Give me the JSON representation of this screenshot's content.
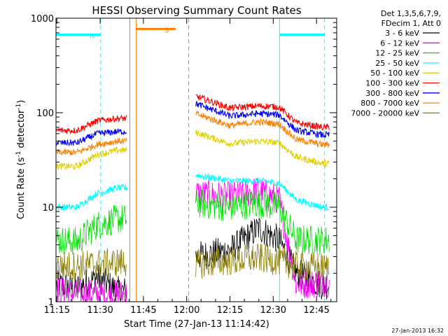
{
  "chart_data": {
    "type": "line",
    "title": "HESSI Observing Summary Count Rates",
    "xlabel": "Start Time (27-Jan-13 11:14:42)",
    "ylabel_main": "Count Rate (s",
    "ylabel_sup1": "-1",
    "ylabel_mid": " detector",
    "ylabel_sup2": "-1",
    "ylabel_end": ")",
    "yscale": "log",
    "ylim": [
      1,
      1000
    ],
    "xlim_min": [
      674.7,
      772
    ],
    "x_ticks": [
      {
        "min": 675,
        "label": "11:15"
      },
      {
        "min": 690,
        "label": "11:30"
      },
      {
        "min": 705,
        "label": "11:45"
      },
      {
        "min": 720,
        "label": "12:00"
      },
      {
        "min": 735,
        "label": "12:15"
      },
      {
        "min": 750,
        "label": "12:30"
      },
      {
        "min": 765,
        "label": "12:45"
      }
    ],
    "y_ticks": [
      {
        "value": 1,
        "label": "1"
      },
      {
        "value": 10,
        "label": "10"
      },
      {
        "value": 100,
        "label": "100"
      },
      {
        "value": 1000,
        "label": "1000"
      }
    ],
    "legend_header": [
      "Det 1,3,5,6,7,9,",
      "FDecim 1, Att 0"
    ],
    "legend_position": "right",
    "series": [
      {
        "name": "3 - 6 keV",
        "color": "#000000",
        "values": [
          {
            "t": 675,
            "v": 1.5
          },
          {
            "t": 682,
            "v": 1.4
          },
          {
            "t": 689,
            "v": 1.8
          },
          {
            "t": 696,
            "v": 1.3
          },
          {
            "t": 723,
            "v": 3.0
          },
          {
            "t": 735,
            "v": 3.5
          },
          {
            "t": 745,
            "v": 6.0
          },
          {
            "t": 752,
            "v": 4.5
          },
          {
            "t": 758,
            "v": 2.0
          },
          {
            "t": 767,
            "v": 1.5
          }
        ]
      },
      {
        "name": "6 - 12 keV",
        "color": "#ff00ff",
        "values": [
          {
            "t": 675,
            "v": 1.3
          },
          {
            "t": 682,
            "v": 1.2
          },
          {
            "t": 689,
            "v": 1.2
          },
          {
            "t": 696,
            "v": 1.2
          },
          {
            "t": 723,
            "v": 14
          },
          {
            "t": 735,
            "v": 13
          },
          {
            "t": 745,
            "v": 15
          },
          {
            "t": 752,
            "v": 12
          },
          {
            "t": 758,
            "v": 1.5
          },
          {
            "t": 767,
            "v": 1.6
          }
        ]
      },
      {
        "name": "12 - 25 keV",
        "color": "#00e000",
        "values": [
          {
            "t": 675,
            "v": 4.5
          },
          {
            "t": 682,
            "v": 4.3
          },
          {
            "t": 689,
            "v": 6.5
          },
          {
            "t": 696,
            "v": 7.5
          },
          {
            "t": 723,
            "v": 11
          },
          {
            "t": 735,
            "v": 10
          },
          {
            "t": 745,
            "v": 11
          },
          {
            "t": 752,
            "v": 10
          },
          {
            "t": 758,
            "v": 4.5
          },
          {
            "t": 767,
            "v": 4.5
          }
        ]
      },
      {
        "name": "25 - 50 keV",
        "color": "#00ffff",
        "values": [
          {
            "t": 675,
            "v": 10
          },
          {
            "t": 682,
            "v": 10
          },
          {
            "t": 689,
            "v": 14
          },
          {
            "t": 696,
            "v": 16
          },
          {
            "t": 723,
            "v": 22
          },
          {
            "t": 735,
            "v": 19
          },
          {
            "t": 745,
            "v": 19
          },
          {
            "t": 752,
            "v": 18
          },
          {
            "t": 758,
            "v": 12
          },
          {
            "t": 767,
            "v": 10
          }
        ]
      },
      {
        "name": "50 - 100 keV",
        "color": "#e0d000",
        "values": [
          {
            "t": 675,
            "v": 27
          },
          {
            "t": 682,
            "v": 27
          },
          {
            "t": 689,
            "v": 36
          },
          {
            "t": 696,
            "v": 40
          },
          {
            "t": 723,
            "v": 62
          },
          {
            "t": 735,
            "v": 47
          },
          {
            "t": 745,
            "v": 50
          },
          {
            "t": 752,
            "v": 48
          },
          {
            "t": 758,
            "v": 34
          },
          {
            "t": 767,
            "v": 29
          }
        ]
      },
      {
        "name": "100 - 300 keV",
        "color": "#ff0000",
        "values": [
          {
            "t": 675,
            "v": 65
          },
          {
            "t": 682,
            "v": 65
          },
          {
            "t": 689,
            "v": 82
          },
          {
            "t": 696,
            "v": 87
          },
          {
            "t": 723,
            "v": 150
          },
          {
            "t": 735,
            "v": 112
          },
          {
            "t": 745,
            "v": 118
          },
          {
            "t": 752,
            "v": 115
          },
          {
            "t": 758,
            "v": 78
          },
          {
            "t": 767,
            "v": 70
          }
        ]
      },
      {
        "name": "300 - 800 keV",
        "color": "#0000ff",
        "values": [
          {
            "t": 675,
            "v": 48
          },
          {
            "t": 682,
            "v": 48
          },
          {
            "t": 689,
            "v": 60
          },
          {
            "t": 696,
            "v": 63
          },
          {
            "t": 723,
            "v": 125
          },
          {
            "t": 735,
            "v": 92
          },
          {
            "t": 745,
            "v": 98
          },
          {
            "t": 752,
            "v": 95
          },
          {
            "t": 758,
            "v": 65
          },
          {
            "t": 767,
            "v": 58
          }
        ]
      },
      {
        "name": "800 - 7000 keV",
        "color": "#ff8000",
        "values": [
          {
            "t": 675,
            "v": 38
          },
          {
            "t": 682,
            "v": 38
          },
          {
            "t": 689,
            "v": 46
          },
          {
            "t": 696,
            "v": 50
          },
          {
            "t": 723,
            "v": 98
          },
          {
            "t": 735,
            "v": 73
          },
          {
            "t": 745,
            "v": 80
          },
          {
            "t": 752,
            "v": 76
          },
          {
            "t": 758,
            "v": 52
          },
          {
            "t": 767,
            "v": 46
          }
        ]
      },
      {
        "name": "7000 - 20000 keV",
        "color": "#8b7d00",
        "values": [
          {
            "t": 675,
            "v": 2.4
          },
          {
            "t": 682,
            "v": 2.4
          },
          {
            "t": 689,
            "v": 2.5
          },
          {
            "t": 696,
            "v": 2.6
          },
          {
            "t": 723,
            "v": 2.5
          },
          {
            "t": 735,
            "v": 2.7
          },
          {
            "t": 745,
            "v": 2.9
          },
          {
            "t": 752,
            "v": 2.7
          },
          {
            "t": 758,
            "v": 2.4
          },
          {
            "t": 767,
            "v": 2.3
          }
        ]
      }
    ],
    "bars": [
      {
        "label": "N",
        "color": "#00ffff",
        "from": 674.7,
        "to": 690.2,
        "value": 670
      },
      {
        "label": "S",
        "color": "#ff8000",
        "from": 702.5,
        "to": 716.2,
        "value": 770
      },
      {
        "label": "",
        "color": "#00ffff",
        "from": 752.2,
        "to": 767.8,
        "value": 670
      }
    ],
    "vlines": [
      {
        "t": 690.2,
        "color": "#00ffff",
        "style": "dashed"
      },
      {
        "t": 700.3,
        "color": "#ff8000",
        "style": "solid"
      },
      {
        "t": 702.5,
        "color": "#ff8000",
        "style": "solid"
      },
      {
        "t": 720.7,
        "color": "#ff8000",
        "style": "dashed"
      },
      {
        "t": 752.2,
        "color": "#00ffff",
        "style": "solid"
      },
      {
        "t": 767.8,
        "color": "#00ffff",
        "style": "dashed"
      }
    ],
    "gaps": [
      [
        699.3,
        723.0
      ]
    ],
    "timestamp": "27-Jan-2013 16:32"
  }
}
